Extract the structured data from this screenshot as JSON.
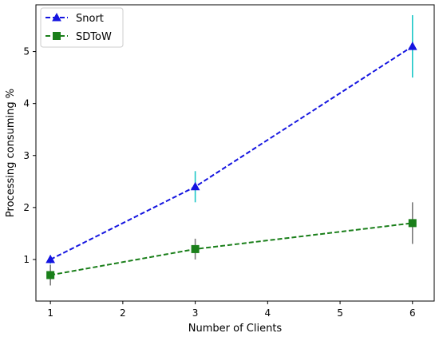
{
  "chart_data": {
    "type": "line",
    "title": "",
    "xlabel": "Number of Clients",
    "ylabel": "Processing consuming %",
    "xlim": [
      0.8,
      6.3
    ],
    "ylim": [
      0.2,
      5.9
    ],
    "xticks": [
      1,
      2,
      3,
      4,
      5,
      6
    ],
    "yticks": [
      1,
      2,
      3,
      4,
      5
    ],
    "x": [
      1,
      3,
      6
    ],
    "grid": false,
    "legend_position": "top-left",
    "series": [
      {
        "name": "Snort",
        "values": [
          1.0,
          2.4,
          5.1
        ],
        "errors": [
          0.08,
          0.3,
          0.6
        ],
        "line_color": "#1515e0",
        "marker": "triangle",
        "error_color": "#1ec8c8",
        "line_style": "dashed"
      },
      {
        "name": "SDToW",
        "values": [
          0.7,
          1.2,
          1.7
        ],
        "errors": [
          0.2,
          0.2,
          0.4
        ],
        "line_color": "#1a7f1a",
        "marker": "square",
        "error_color": "#7a7a7a",
        "line_style": "dashed"
      }
    ]
  }
}
